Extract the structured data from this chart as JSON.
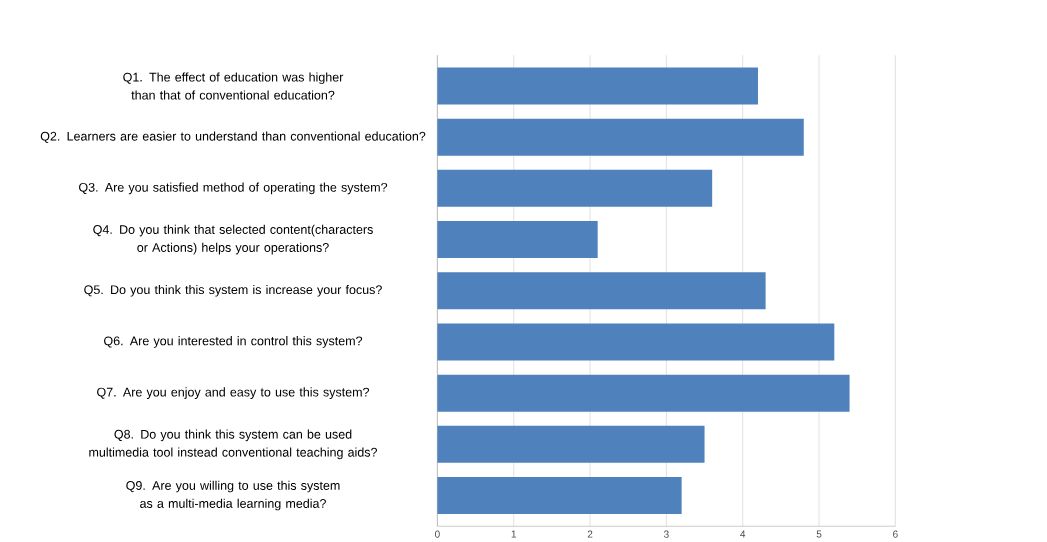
{
  "chart_data": {
    "type": "bar",
    "orientation": "horizontal",
    "categories": [
      "Q1. The effect of education was higher than that of conventional education?",
      "Q2. Learners are easier to understand than conventional education?",
      "Q3. Are you satisfied method of operating the system?",
      "Q4. Do you think that selected content(characters or Actions) helps your operations?",
      "Q5. Do you think this system is increase your focus?",
      "Q6. Are you interested in control this system?",
      "Q7. Are you enjoy and easy to use this system?",
      "Q8. Do you think this system can be used multimedia tool instead conventional teaching aids?",
      "Q9. Are you willing to use this system as a multi-media learning media?"
    ],
    "values": [
      4.2,
      4.8,
      3.6,
      2.1,
      4.3,
      5.2,
      5.4,
      3.5,
      3.2
    ],
    "color": "#4f81bd",
    "xlim": [
      0,
      6
    ],
    "xticks": [
      0,
      1,
      2,
      3,
      4,
      5,
      6
    ],
    "grid": "x"
  }
}
